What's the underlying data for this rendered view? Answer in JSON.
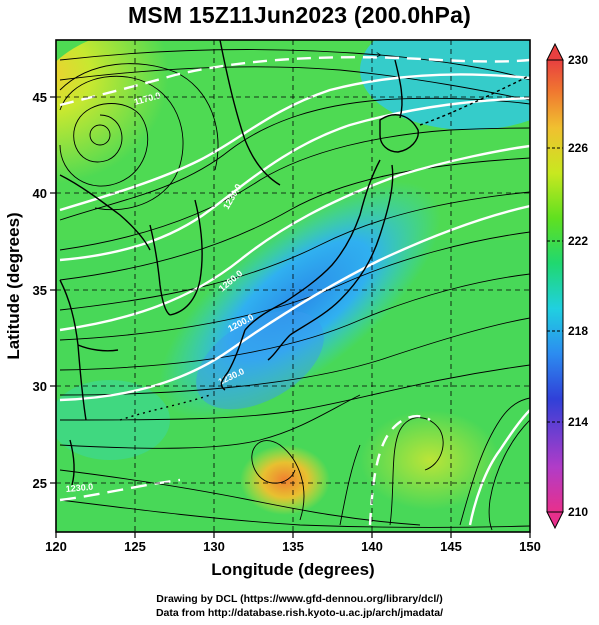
{
  "title": "MSM 15Z11Jun2023 (200.0hPa)",
  "map": {
    "lon_range": [
      120,
      150
    ],
    "lat_range": [
      22.5,
      48
    ],
    "x_label": "Longitude (degrees)",
    "y_label": "Latitude  (degrees)",
    "x_ticks": [
      120,
      125,
      130,
      135,
      140,
      145,
      150
    ],
    "y_ticks": [
      25,
      30,
      35,
      40,
      45
    ],
    "grid": "dashed, every 5 degrees",
    "field": "temperature (K) shaded, streamlines of wind, white isolines",
    "isoline_labels": [
      "1230.0",
      "1260.0",
      "1200.0",
      "1230.0",
      "1170.0",
      "1230.0"
    ]
  },
  "colorbar": {
    "min": 210,
    "max": 230,
    "tick_labels": [
      "230",
      "226",
      "222",
      "218",
      "214",
      "210"
    ],
    "colors": [
      "#e8308c",
      "#b03cc8",
      "#3040d8",
      "#2c8cf0",
      "#20d0e0",
      "#20d870",
      "#60e020",
      "#c8e820",
      "#f0c030",
      "#f07830",
      "#e84040"
    ]
  },
  "credits": {
    "line1": "Drawing by DCL (https://www.gfd-dennou.org/library/dcl/)",
    "line2": "Data from http://database.rish.kyoto-u.ac.jp/arch/jmadata/"
  }
}
